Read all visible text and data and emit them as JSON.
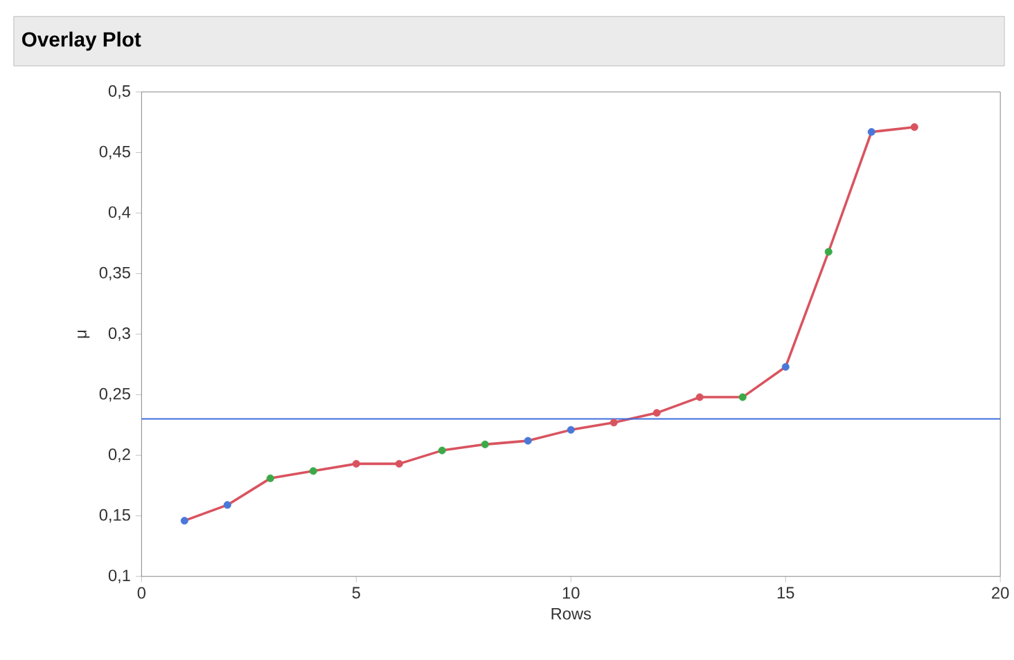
{
  "chart_data": {
    "type": "line",
    "title": "Overlay Plot",
    "xlabel": "Rows",
    "ylabel": "μ",
    "x": [
      1,
      2,
      3,
      4,
      5,
      6,
      7,
      8,
      9,
      10,
      11,
      12,
      13,
      14,
      15,
      16,
      17,
      18
    ],
    "series": [
      {
        "color": "#d9535f",
        "values": [
          0.146,
          0.159,
          0.181,
          0.187,
          0.193,
          0.193,
          0.204,
          0.209,
          0.212,
          0.221,
          0.227,
          0.235,
          0.248,
          0.248,
          0.273,
          0.368,
          0.467,
          0.471
        ],
        "colors": [
          "#4a78d9",
          "#4a78d9",
          "#3aaa48",
          "#3aaa48",
          "#d9535f",
          "#d9535f",
          "#3aaa48",
          "#3aaa48",
          "#4a78d9",
          "#4a78d9",
          "#d9535f",
          "#d9535f",
          "#d9535f",
          "#3aaa48",
          "#4a78d9",
          "#3aaa48",
          "#4a78d9",
          "#d9535f"
        ]
      }
    ],
    "marker": "circle",
    "line_style": "solid",
    "grid": false,
    "xlim": [
      0,
      20
    ],
    "xticks": [
      0,
      5,
      10,
      15,
      20
    ],
    "ylim": [
      0.1,
      0.5
    ],
    "yticks": [
      {
        "value": 0.1,
        "label": "0,1"
      },
      {
        "value": 0.15,
        "label": "0,15"
      },
      {
        "value": 0.2,
        "label": "0,2"
      },
      {
        "value": 0.25,
        "label": "0,25"
      },
      {
        "value": 0.3,
        "label": "0,3"
      },
      {
        "value": 0.35,
        "label": "0,35"
      },
      {
        "value": 0.4,
        "label": "0,4"
      },
      {
        "value": 0.45,
        "label": "0,45"
      },
      {
        "value": 0.5,
        "label": "0,5"
      }
    ],
    "ref_lines": [
      {
        "axis": "y",
        "value": 0.23,
        "color": "#3f6fe0"
      }
    ]
  }
}
